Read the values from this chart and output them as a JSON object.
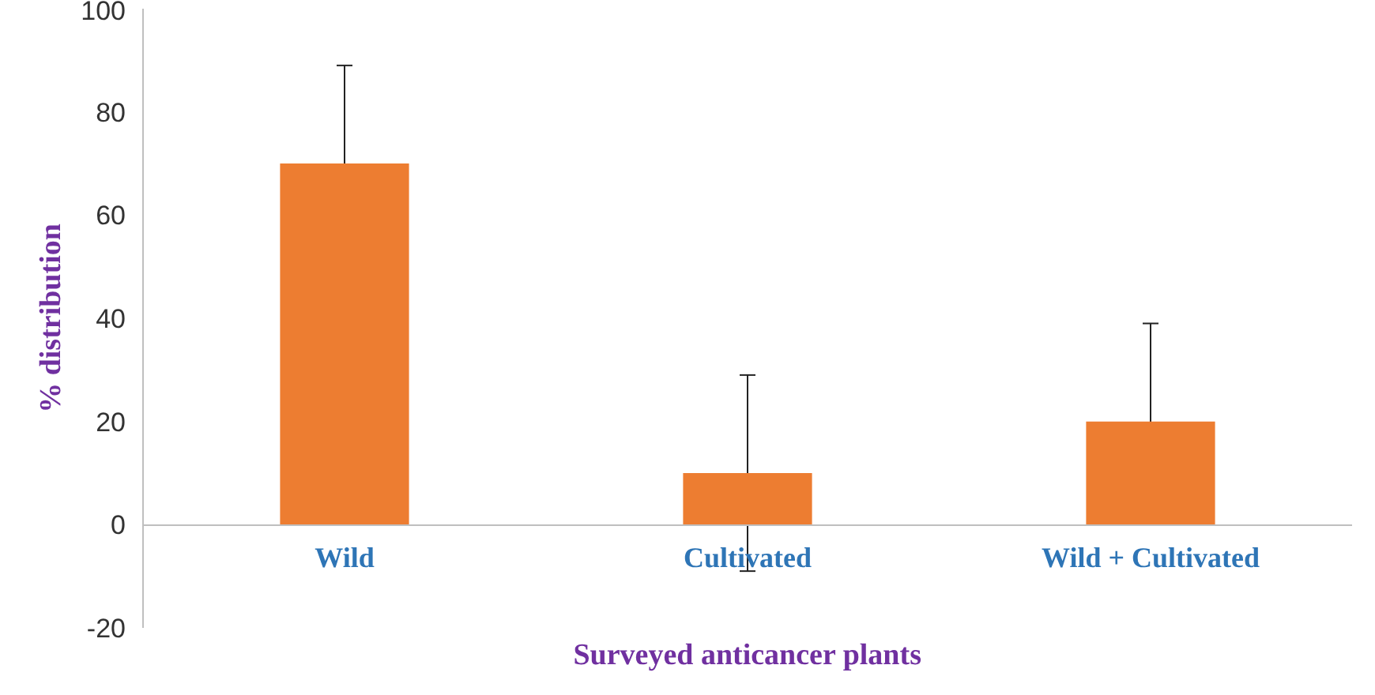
{
  "chart_data": {
    "type": "bar",
    "xlabel": "Surveyed anticancer plants",
    "ylabel": "% distribution",
    "categories": [
      "Wild",
      "Cultivated",
      "Wild + Cultivated"
    ],
    "values": [
      70,
      10,
      20
    ],
    "errors": [
      19,
      19,
      19
    ],
    "color": "#ed7d31",
    "ylim": [
      -20,
      100
    ],
    "yticks": [
      -20,
      0,
      20,
      40,
      60,
      80,
      100
    ],
    "grid": false
  }
}
